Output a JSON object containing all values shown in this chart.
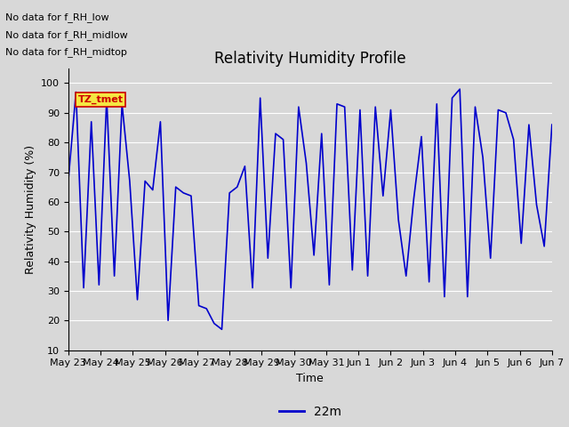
{
  "title": "Relativity Humidity Profile",
  "xlabel": "Time",
  "ylabel": "Relativity Humidity (%)",
  "ylim": [
    10,
    105
  ],
  "yticks": [
    10,
    20,
    30,
    40,
    50,
    60,
    70,
    80,
    90,
    100
  ],
  "line_color": "#0000CC",
  "line_width": 1.2,
  "legend_label": "22m",
  "legend_line_color": "#0000CC",
  "bg_color": "#D8D8D8",
  "plot_bg_color": "#D8D8D8",
  "annotations": [
    "No data for f_RH_low",
    "No data for f_RH_midlow",
    "No data for f_RH_midtop"
  ],
  "tz_label": "TZ_tmet",
  "x_tick_labels": [
    "May 23",
    "May 24",
    "May 25",
    "May 26",
    "May 27",
    "May 28",
    "May 29",
    "May 30",
    "May 31",
    "Jun 1",
    "Jun 2",
    "Jun 3",
    "Jun 4",
    "Jun 5",
    "Jun 6",
    "Jun 7"
  ],
  "x_tick_positions": [
    0,
    1,
    2,
    3,
    4,
    5,
    6,
    7,
    8,
    9,
    10,
    11,
    12,
    13,
    14,
    15
  ],
  "data_y": [
    67,
    97,
    31,
    87,
    32,
    95,
    35,
    93,
    67,
    27,
    67,
    64,
    87,
    20,
    65,
    63,
    62,
    25,
    24,
    19,
    17,
    63,
    65,
    72,
    31,
    95,
    41,
    83,
    81,
    31,
    92,
    73,
    42,
    83,
    32,
    93,
    92,
    37,
    91,
    35,
    92,
    62,
    91,
    54,
    35,
    61,
    82,
    33,
    93,
    28,
    95,
    98,
    28,
    92,
    75,
    41,
    91,
    90,
    81,
    46,
    86,
    59,
    45,
    86
  ],
  "grid_color": "#ffffff",
  "grid_alpha": 1.0,
  "title_fontsize": 12,
  "axis_fontsize": 9,
  "tick_fontsize": 8
}
